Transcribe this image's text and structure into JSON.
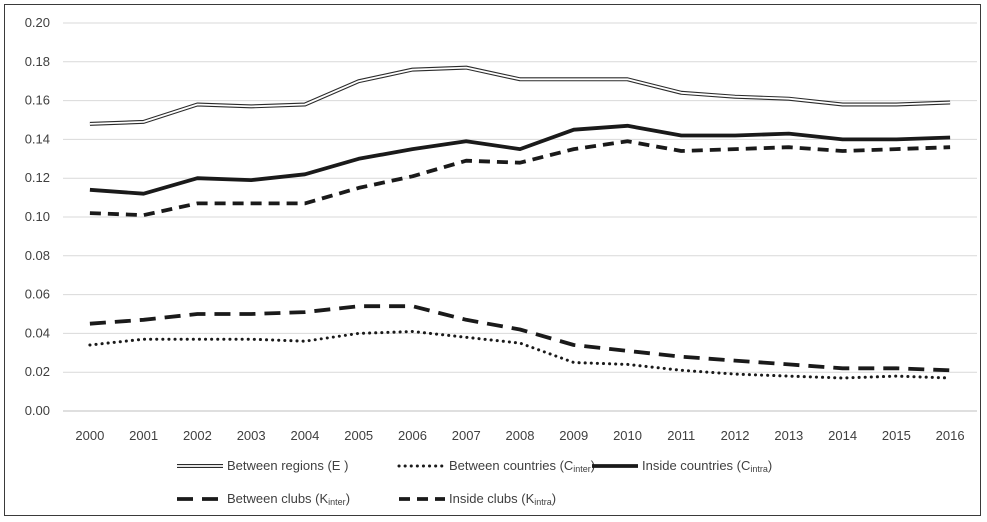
{
  "chart_data": {
    "type": "line",
    "x": [
      "2000",
      "2001",
      "2002",
      "2003",
      "2004",
      "2005",
      "2006",
      "2007",
      "2008",
      "2009",
      "2010",
      "2011",
      "2012",
      "2013",
      "2014",
      "2015",
      "2016"
    ],
    "ylim": [
      0,
      0.2
    ],
    "yticks": [
      "0.00",
      "0.02",
      "0.04",
      "0.06",
      "0.08",
      "0.10",
      "0.12",
      "0.14",
      "0.16",
      "0.18",
      "0.20"
    ],
    "grid": true,
    "legend_position": "bottom",
    "series": [
      {
        "name": "Between regions (E )",
        "name_main": "Between regions (E )",
        "name_sub": "",
        "name_close": "",
        "style": "double",
        "color": "#2b2b2b",
        "values": [
          0.148,
          0.149,
          0.158,
          0.157,
          0.158,
          0.17,
          0.176,
          0.177,
          0.171,
          0.171,
          0.171,
          0.164,
          0.162,
          0.161,
          0.158,
          0.158,
          0.159
        ]
      },
      {
        "name": "Between countries (Cinter)",
        "name_main": "Between countries (C",
        "name_sub": "inter",
        "name_close": ")",
        "style": "dotted",
        "color": "#1a1a1a",
        "values": [
          0.034,
          0.037,
          0.037,
          0.037,
          0.036,
          0.04,
          0.041,
          0.038,
          0.035,
          0.025,
          0.024,
          0.021,
          0.019,
          0.018,
          0.017,
          0.018,
          0.017
        ]
      },
      {
        "name": "Inside countries (Cintra)",
        "name_main": "Inside countries (C",
        "name_sub": "intra",
        "name_close": ")",
        "style": "solid",
        "color": "#1a1a1a",
        "values": [
          0.114,
          0.112,
          0.12,
          0.119,
          0.122,
          0.13,
          0.135,
          0.139,
          0.135,
          0.145,
          0.147,
          0.142,
          0.142,
          0.143,
          0.14,
          0.14,
          0.141
        ]
      },
      {
        "name": "Between clubs (Kinter)",
        "name_main": "Between clubs (K",
        "name_sub": "inter",
        "name_close": ")",
        "style": "long-dash",
        "color": "#1a1a1a",
        "values": [
          0.045,
          0.047,
          0.05,
          0.05,
          0.051,
          0.054,
          0.054,
          0.047,
          0.042,
          0.034,
          0.031,
          0.028,
          0.026,
          0.024,
          0.022,
          0.022,
          0.021
        ]
      },
      {
        "name": "Inside clubs (Kintra)",
        "name_main": "Inside clubs (K",
        "name_sub": "intra",
        "name_close": ")",
        "style": "dash",
        "color": "#1a1a1a",
        "values": [
          0.102,
          0.101,
          0.107,
          0.107,
          0.107,
          0.115,
          0.121,
          0.129,
          0.128,
          0.135,
          0.139,
          0.134,
          0.135,
          0.136,
          0.134,
          0.135,
          0.136
        ]
      }
    ]
  }
}
